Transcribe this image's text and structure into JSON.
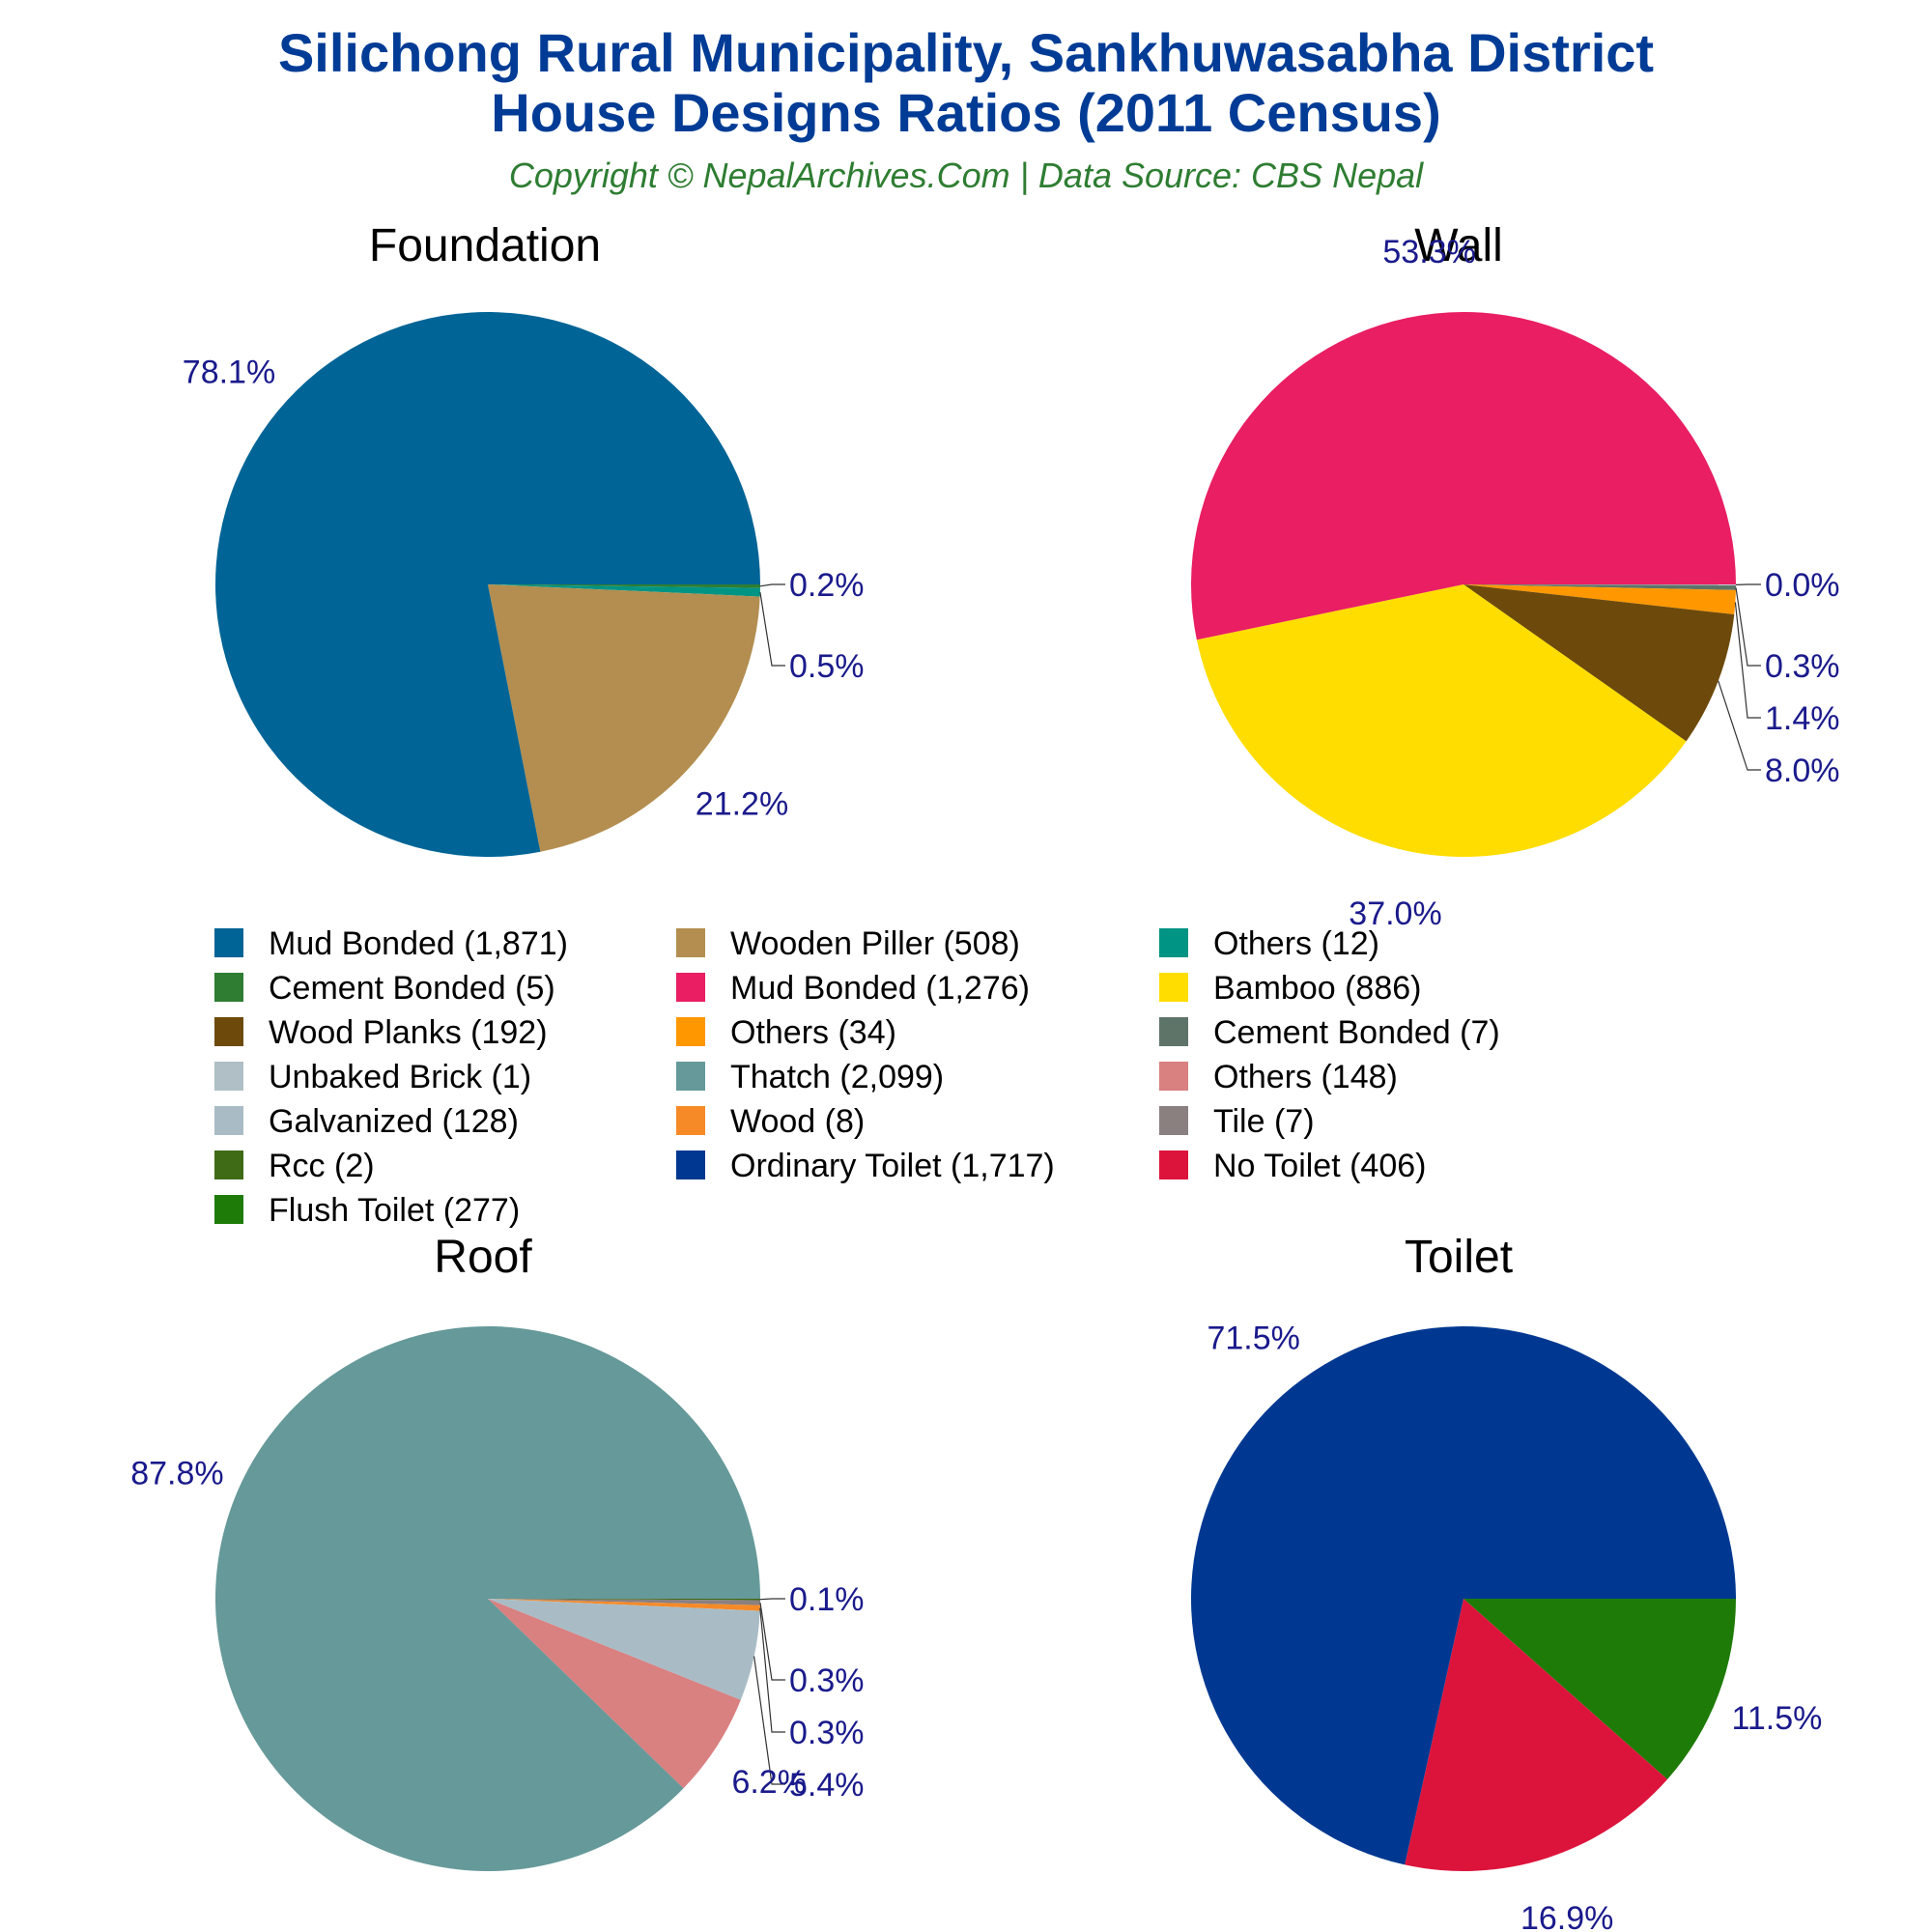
{
  "title_line1": "Silichong Rural Municipality, Sankhuwasabha District",
  "title_line2": "House Designs Ratios (2011 Census)",
  "subtitle": "Copyright © NepalArchives.Com | Data Source: CBS Nepal",
  "legend": [
    {
      "label": "Mud Bonded (1,871)",
      "color": "#006496"
    },
    {
      "label": "Wooden Piller (508)",
      "color": "#b38e50"
    },
    {
      "label": "Others (12)",
      "color": "#009484"
    },
    {
      "label": "Cement Bonded (5)",
      "color": "#2e7d32"
    },
    {
      "label": "Mud Bonded (1,276)",
      "color": "#e91e63"
    },
    {
      "label": "Bamboo (886)",
      "color": "#ffdd00"
    },
    {
      "label": "Wood Planks (192)",
      "color": "#6d4a0b"
    },
    {
      "label": "Others (34)",
      "color": "#ff9800"
    },
    {
      "label": "Cement Bonded (7)",
      "color": "#5e7468"
    },
    {
      "label": "Unbaked Brick (1)",
      "color": "#b0bec5"
    },
    {
      "label": "Thatch (2,099)",
      "color": "#669999"
    },
    {
      "label": "Others (148)",
      "color": "#d98080"
    },
    {
      "label": "Galvanized (128)",
      "color": "#a9bcc6"
    },
    {
      "label": "Wood (8)",
      "color": "#f58a27"
    },
    {
      "label": "Tile (7)",
      "color": "#8a8080"
    },
    {
      "label": "Rcc (2)",
      "color": "#3f6b16"
    },
    {
      "label": "Ordinary Toilet (1,717)",
      "color": "#003891"
    },
    {
      "label": "No Toilet (406)",
      "color": "#dc143c"
    },
    {
      "label": "Flush Toilet (277)",
      "color": "#1e7b07"
    }
  ],
  "chart_data": [
    {
      "type": "pie",
      "title": "Foundation",
      "slices": [
        {
          "label": "Cement Bonded",
          "value": 5,
          "pct_label": "0.2%",
          "color": "#2e7d32"
        },
        {
          "label": "Others",
          "value": 12,
          "pct_label": "0.5%",
          "color": "#009484"
        },
        {
          "label": "Wooden Piller",
          "value": 508,
          "pct_label": "21.2%",
          "color": "#b38e50"
        },
        {
          "label": "Mud Bonded",
          "value": 1871,
          "pct_label": "78.1%",
          "color": "#006496"
        }
      ]
    },
    {
      "type": "pie",
      "title": "Wall",
      "slices": [
        {
          "label": "Unbaked Brick",
          "value": 1,
          "pct_label": "0.0%",
          "color": "#b0bec5"
        },
        {
          "label": "Cement Bonded",
          "value": 7,
          "pct_label": "0.3%",
          "color": "#5e7468"
        },
        {
          "label": "Others",
          "value": 34,
          "pct_label": "1.4%",
          "color": "#ff9800"
        },
        {
          "label": "Wood Planks",
          "value": 192,
          "pct_label": "8.0%",
          "color": "#6d4a0b"
        },
        {
          "label": "Bamboo",
          "value": 886,
          "pct_label": "37.0%",
          "color": "#ffdd00"
        },
        {
          "label": "Mud Bonded",
          "value": 1276,
          "pct_label": "53.3%",
          "color": "#e91e63"
        }
      ]
    },
    {
      "type": "pie",
      "title": "Roof",
      "slices": [
        {
          "label": "Rcc",
          "value": 2,
          "pct_label": "0.1%",
          "color": "#3f6b16"
        },
        {
          "label": "Tile",
          "value": 7,
          "pct_label": "0.3%",
          "color": "#8a8080"
        },
        {
          "label": "Wood",
          "value": 8,
          "pct_label": "0.3%",
          "color": "#f58a27"
        },
        {
          "label": "Galvanized",
          "value": 128,
          "pct_label": "5.4%",
          "color": "#a9bcc6"
        },
        {
          "label": "Others",
          "value": 148,
          "pct_label": "6.2%",
          "color": "#d98080"
        },
        {
          "label": "Thatch",
          "value": 2099,
          "pct_label": "87.8%",
          "color": "#669999"
        }
      ]
    },
    {
      "type": "pie",
      "title": "Toilet",
      "slices": [
        {
          "label": "Flush Toilet",
          "value": 277,
          "pct_label": "11.5%",
          "color": "#1e7b07"
        },
        {
          "label": "No Toilet",
          "value": 406,
          "pct_label": "16.9%",
          "color": "#dc143c"
        },
        {
          "label": "Ordinary Toilet",
          "value": 1717,
          "pct_label": "71.5%",
          "color": "#003891"
        }
      ]
    }
  ]
}
